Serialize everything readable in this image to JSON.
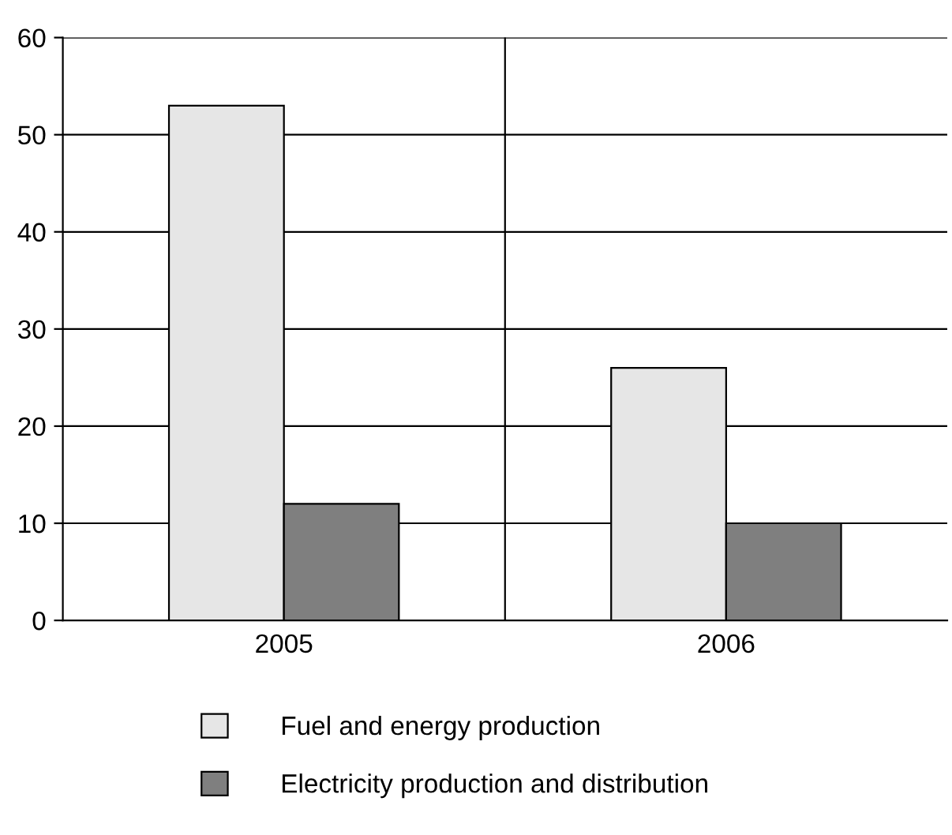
{
  "chart_data": {
    "type": "bar",
    "categories": [
      "2005",
      "2006"
    ],
    "series": [
      {
        "name": "Fuel and energy production",
        "color": "#e6e6e6",
        "values": [
          53,
          26
        ]
      },
      {
        "name": "Electricity production and distribution",
        "color": "#7f7f7f",
        "values": [
          12,
          10
        ]
      }
    ],
    "ylim": [
      0,
      60
    ],
    "yticks": [
      0,
      10,
      20,
      30,
      40,
      50,
      60
    ],
    "grid": true,
    "legend": "bottom"
  }
}
